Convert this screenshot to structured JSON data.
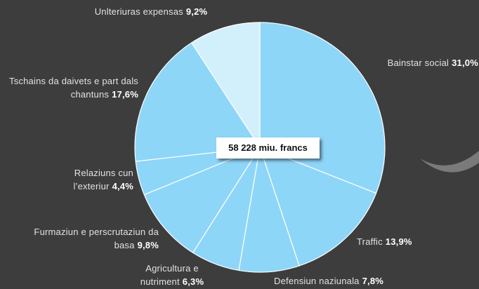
{
  "chart_data": {
    "type": "pie",
    "categories": [
      "Bainstar social",
      "Traffic",
      "Defensiun naziunala",
      "Agricultura e nutriment",
      "Furmaziun e perscrutaziun da basa",
      "Relaziuns cun l’exteriur",
      "Tschains da daivets e part dals chantuns",
      "Unlteriuras expensas"
    ],
    "values": [
      31.0,
      13.9,
      7.8,
      6.3,
      9.8,
      4.4,
      17.6,
      9.2
    ],
    "value_labels": [
      "31,0%",
      "13,9%",
      "7,8%",
      "6,3%",
      "9,8%",
      "4,4%",
      "17,6%",
      "9,2%"
    ],
    "colors": [
      "#8ed6f8",
      "#8ed6f8",
      "#8ed6f8",
      "#8ed6f8",
      "#8ed6f8",
      "#8ed6f8",
      "#8ed6f8",
      "#d2effc"
    ],
    "annotation": "58 228 miu. francs"
  }
}
